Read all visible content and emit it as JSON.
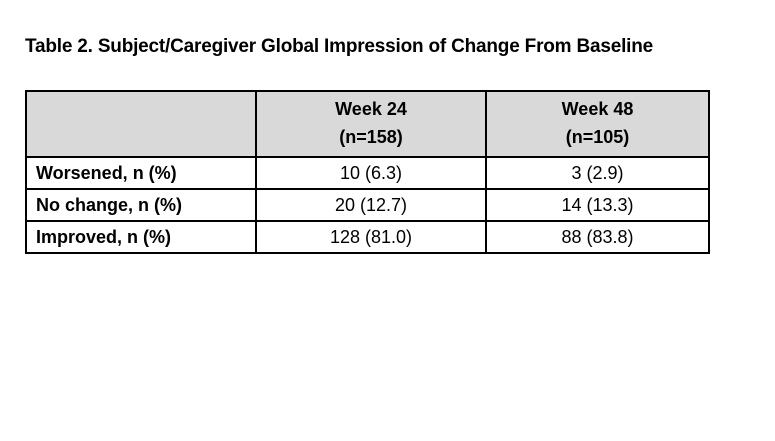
{
  "page": {
    "background": "#ffffff"
  },
  "title": "Table 2. Subject/Caregiver Global Impression of Change From Baseline",
  "table": {
    "header": {
      "col0": "",
      "col1_line1": "Week 24",
      "col1_line2": "(n=158)",
      "col2_line1": "Week 48",
      "col2_line2": "(n=105)"
    },
    "rows": [
      {
        "label": "Worsened, n (%)",
        "week24": "10 (6.3)",
        "week48": "3 (2.9)"
      },
      {
        "label": "No change, n (%)",
        "week24": "20 (12.7)",
        "week48": "14 (13.3)"
      },
      {
        "label": "Improved, n (%)",
        "week24": "128 (81.0)",
        "week48": "88 (83.8)"
      }
    ],
    "colors": {
      "header_bg": "#d9d9d9",
      "border": "#000000",
      "text": "#000000"
    }
  }
}
